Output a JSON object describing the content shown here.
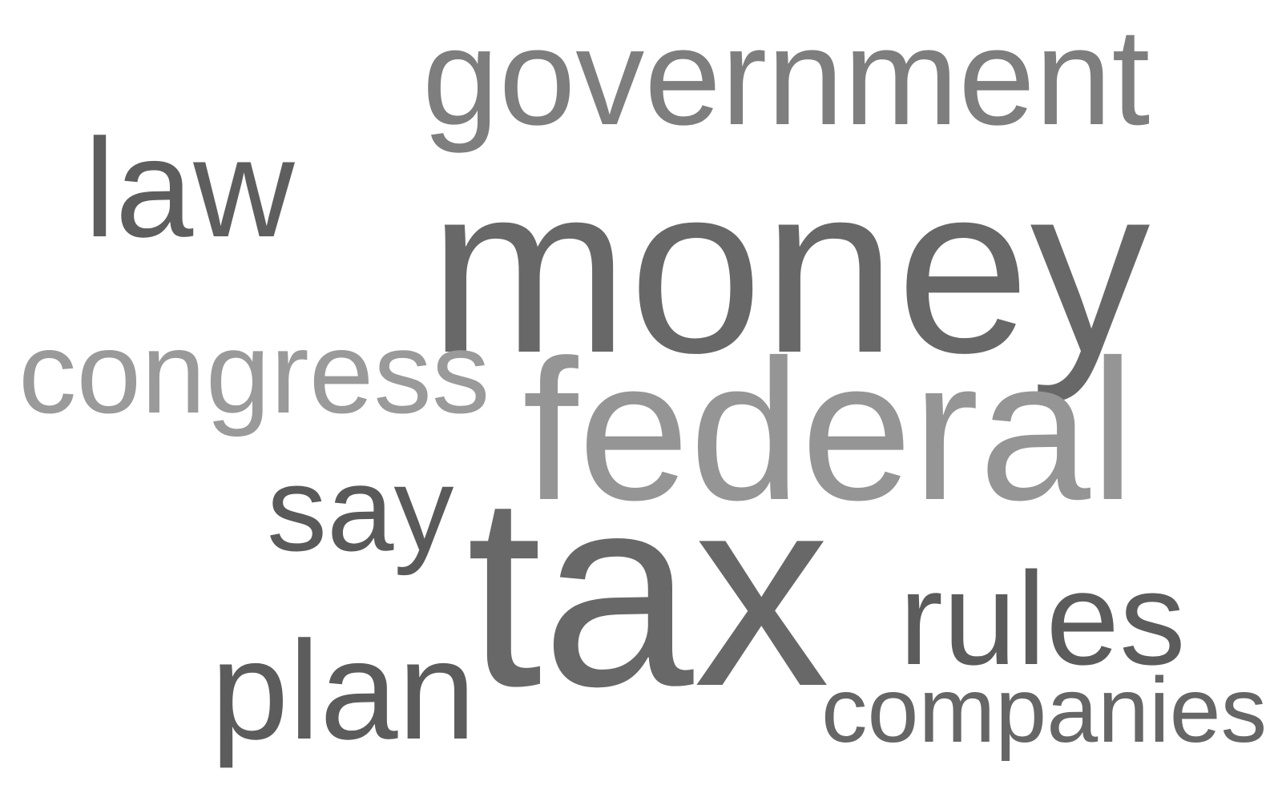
{
  "word_cloud": {
    "words": [
      {
        "text": "government",
        "color": "#7e7e7e"
      },
      {
        "text": "law",
        "color": "#5e5e5e"
      },
      {
        "text": "money",
        "color": "#686868"
      },
      {
        "text": "congress",
        "color": "#9a9a9a"
      },
      {
        "text": "federal",
        "color": "#959595"
      },
      {
        "text": "say",
        "color": "#5a5a5a"
      },
      {
        "text": "tax",
        "color": "#686868"
      },
      {
        "text": "rules",
        "color": "#5c5c5c"
      },
      {
        "text": "plan",
        "color": "#5c5c5c"
      },
      {
        "text": "companies",
        "color": "#666666"
      }
    ]
  }
}
